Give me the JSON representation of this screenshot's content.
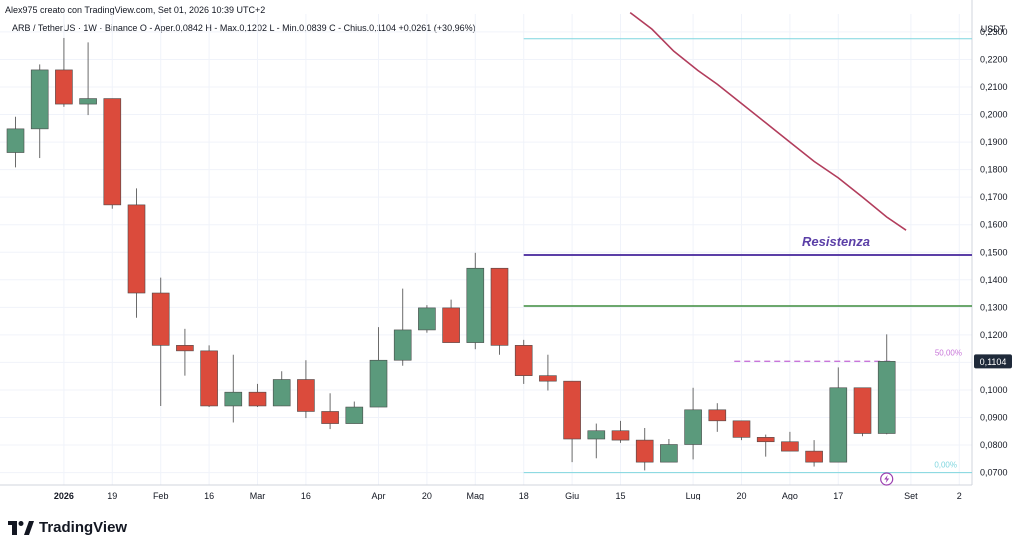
{
  "header": {
    "author_line": "Alex975 creato con TradingView.com, Set 01, 2026 10:39 UTC+2"
  },
  "legend": {
    "text": "ARB / TetherUS · 1W · Binance  O - Aper.0,0842  H - Max.0,1202  L - Min.0,0839  C - Chius.0,1104  +0,0261 (+30,96%)"
  },
  "footer": {
    "brand": "TradingView"
  },
  "colors": {
    "bull": "#5b9a7c",
    "bear": "#db4b3c",
    "wick": "#6b6b6b",
    "resistance": "#5b3fa7",
    "green_line": "#3d8c3d",
    "cyan_line": "#7fd6df",
    "ma_line": "#b23d5c",
    "fib_label": "#c875d9",
    "price_badge": "#1f2a3a"
  },
  "chart_data": {
    "type": "candlestick",
    "title": "ARB / TetherUS · 1W · Binance",
    "ylabel": "USDT",
    "ylim": [
      0.0655,
      0.2365
    ],
    "price_ticks": [
      "0,2300",
      "0,2200",
      "0,2100",
      "0,2000",
      "0,1900",
      "0,1800",
      "0,1700",
      "0,1600",
      "0,1500",
      "0,1400",
      "0,1300",
      "0,1200",
      "0,1100",
      "0,1000",
      "0,0900",
      "0,0800",
      "0,0700"
    ],
    "x_ticks": [
      {
        "index": 2,
        "label": "2026",
        "bold": true
      },
      {
        "index": 4,
        "label": "19"
      },
      {
        "index": 6,
        "label": "Feb"
      },
      {
        "index": 8,
        "label": "16"
      },
      {
        "index": 10,
        "label": "Mar"
      },
      {
        "index": 12,
        "label": "16"
      },
      {
        "index": 15,
        "label": "Apr"
      },
      {
        "index": 17,
        "label": "20"
      },
      {
        "index": 19,
        "label": "Mag"
      },
      {
        "index": 21,
        "label": "18"
      },
      {
        "index": 23,
        "label": "Giu"
      },
      {
        "index": 25,
        "label": "15"
      },
      {
        "index": 28,
        "label": "Lug"
      },
      {
        "index": 30,
        "label": "20"
      },
      {
        "index": 32,
        "label": "Ago"
      },
      {
        "index": 34,
        "label": "17"
      },
      {
        "index": 37,
        "label": "Set"
      },
      {
        "index": 39,
        "label": "2"
      }
    ],
    "candles": [
      {
        "o": 0.1862,
        "h": 0.1992,
        "l": 0.1808,
        "c": 0.1948
      },
      {
        "o": 0.1948,
        "h": 0.2182,
        "l": 0.1842,
        "c": 0.2162
      },
      {
        "o": 0.2162,
        "h": 0.2278,
        "l": 0.2028,
        "c": 0.2038
      },
      {
        "o": 0.2038,
        "h": 0.2262,
        "l": 0.1998,
        "c": 0.2058
      },
      {
        "o": 0.2058,
        "h": 0.2058,
        "l": 0.1658,
        "c": 0.1672
      },
      {
        "o": 0.1672,
        "h": 0.1732,
        "l": 0.1262,
        "c": 0.1352
      },
      {
        "o": 0.1352,
        "h": 0.1408,
        "l": 0.0942,
        "c": 0.1162
      },
      {
        "o": 0.1162,
        "h": 0.1222,
        "l": 0.1052,
        "c": 0.1142
      },
      {
        "o": 0.1142,
        "h": 0.1162,
        "l": 0.0938,
        "c": 0.0942
      },
      {
        "o": 0.0942,
        "h": 0.1128,
        "l": 0.0882,
        "c": 0.0992
      },
      {
        "o": 0.0992,
        "h": 0.1022,
        "l": 0.0938,
        "c": 0.0942
      },
      {
        "o": 0.0942,
        "h": 0.1068,
        "l": 0.0942,
        "c": 0.1038
      },
      {
        "o": 0.1038,
        "h": 0.1108,
        "l": 0.0898,
        "c": 0.0922
      },
      {
        "o": 0.0922,
        "h": 0.0988,
        "l": 0.0858,
        "c": 0.0878
      },
      {
        "o": 0.0878,
        "h": 0.0958,
        "l": 0.0878,
        "c": 0.0938
      },
      {
        "o": 0.0938,
        "h": 0.1228,
        "l": 0.0938,
        "c": 0.1108
      },
      {
        "o": 0.1108,
        "h": 0.1368,
        "l": 0.1088,
        "c": 0.1218
      },
      {
        "o": 0.1218,
        "h": 0.1308,
        "l": 0.1208,
        "c": 0.1298
      },
      {
        "o": 0.1298,
        "h": 0.1328,
        "l": 0.1172,
        "c": 0.1172
      },
      {
        "o": 0.1172,
        "h": 0.1498,
        "l": 0.1148,
        "c": 0.1442
      },
      {
        "o": 0.1442,
        "h": 0.1442,
        "l": 0.1128,
        "c": 0.1162
      },
      {
        "o": 0.1162,
        "h": 0.1182,
        "l": 0.1022,
        "c": 0.1052
      },
      {
        "o": 0.1052,
        "h": 0.1128,
        "l": 0.0998,
        "c": 0.1032
      },
      {
        "o": 0.1032,
        "h": 0.1032,
        "l": 0.0738,
        "c": 0.0822
      },
      {
        "o": 0.0822,
        "h": 0.0878,
        "l": 0.0752,
        "c": 0.0852
      },
      {
        "o": 0.0852,
        "h": 0.0888,
        "l": 0.0808,
        "c": 0.0818
      },
      {
        "o": 0.0818,
        "h": 0.0862,
        "l": 0.0708,
        "c": 0.0738
      },
      {
        "o": 0.0738,
        "h": 0.0822,
        "l": 0.0738,
        "c": 0.0802
      },
      {
        "o": 0.0802,
        "h": 0.1008,
        "l": 0.0748,
        "c": 0.0928
      },
      {
        "o": 0.0928,
        "h": 0.0952,
        "l": 0.0848,
        "c": 0.0888
      },
      {
        "o": 0.0888,
        "h": 0.0888,
        "l": 0.0818,
        "c": 0.0828
      },
      {
        "o": 0.0828,
        "h": 0.0838,
        "l": 0.0758,
        "c": 0.0812
      },
      {
        "o": 0.0812,
        "h": 0.0848,
        "l": 0.0778,
        "c": 0.0778
      },
      {
        "o": 0.0778,
        "h": 0.0818,
        "l": 0.0722,
        "c": 0.0738
      },
      {
        "o": 0.0738,
        "h": 0.1082,
        "l": 0.0738,
        "c": 0.1008
      },
      {
        "o": 0.1008,
        "h": 0.1008,
        "l": 0.0832,
        "c": 0.0842
      },
      {
        "o": 0.0842,
        "h": 0.1202,
        "l": 0.0839,
        "c": 0.1104
      }
    ],
    "current_price": "0,1104",
    "levels": [
      {
        "name": "top-cyan",
        "price": 0.2275,
        "from": 21,
        "color_key": "cyan_line"
      },
      {
        "name": "resistance",
        "price": 0.149,
        "from": 21,
        "color_key": "resistance",
        "label": "Resistenza"
      },
      {
        "name": "green-line",
        "price": 0.1305,
        "from": 21,
        "color_key": "green_line"
      },
      {
        "name": "bottom-cyan",
        "price": 0.07,
        "from": 21,
        "color_key": "cyan_line",
        "label": "0,00%"
      }
    ],
    "fib_50": {
      "price": 0.1104,
      "from": 29.7,
      "to": 36.3,
      "label": "50,00%"
    },
    "moving_average": [
      [
        25.4,
        0.237
      ],
      [
        26.3,
        0.231
      ],
      [
        27.2,
        0.223
      ],
      [
        28.2,
        0.216
      ],
      [
        29.0,
        0.211
      ],
      [
        30.0,
        0.204
      ],
      [
        31.0,
        0.197
      ],
      [
        32.0,
        0.19
      ],
      [
        33.0,
        0.183
      ],
      [
        34.0,
        0.177
      ],
      [
        35.0,
        0.17
      ],
      [
        36.0,
        0.1628
      ],
      [
        36.8,
        0.158
      ]
    ],
    "lightning_marker_index": 36
  }
}
